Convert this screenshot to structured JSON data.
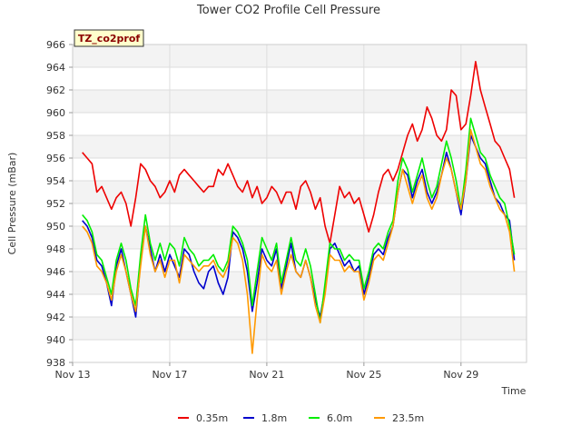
{
  "chart_data": {
    "type": "line",
    "title": "Tower CO2 Profile Cell Pressure",
    "xlabel": "Time",
    "ylabel": "Cell Pressure (mBar)",
    "badge": "TZ_co2prof",
    "ylim": [
      938,
      966
    ],
    "xlim": [
      0,
      18.7
    ],
    "x_ticks": [
      {
        "x": 0,
        "label": "Nov 13"
      },
      {
        "x": 4,
        "label": "Nov 17"
      },
      {
        "x": 8,
        "label": "Nov 21"
      },
      {
        "x": 12,
        "label": "Nov 25"
      },
      {
        "x": 16,
        "label": "Nov 29"
      }
    ],
    "y_ticks": [
      938,
      940,
      942,
      944,
      946,
      948,
      950,
      952,
      954,
      956,
      958,
      960,
      962,
      964,
      966
    ],
    "grid": true,
    "legend_position": "bottom",
    "series": [
      {
        "name": "0.35m",
        "color": "#ee0000",
        "x": [
          0.4,
          0.6,
          0.8,
          1.0,
          1.2,
          1.4,
          1.6,
          1.8,
          2.0,
          2.2,
          2.4,
          2.6,
          2.8,
          3.0,
          3.2,
          3.4,
          3.6,
          3.8,
          4.0,
          4.2,
          4.4,
          4.6,
          4.8,
          5.0,
          5.2,
          5.4,
          5.6,
          5.8,
          6.0,
          6.2,
          6.4,
          6.6,
          6.8,
          7.0,
          7.2,
          7.4,
          7.6,
          7.8,
          8.0,
          8.2,
          8.4,
          8.6,
          8.8,
          9.0,
          9.2,
          9.4,
          9.6,
          9.8,
          10.0,
          10.2,
          10.4,
          10.6,
          10.8,
          11.0,
          11.2,
          11.4,
          11.6,
          11.8,
          12.0,
          12.2,
          12.4,
          12.6,
          12.8,
          13.0,
          13.2,
          13.4,
          13.6,
          13.8,
          14.0,
          14.2,
          14.4,
          14.6,
          14.8,
          15.0,
          15.2,
          15.4,
          15.6,
          15.8,
          16.0,
          16.2,
          16.4,
          16.6,
          16.8,
          17.0,
          17.2,
          17.4,
          17.6,
          17.8,
          18.0,
          18.2
        ],
        "y": [
          956.5,
          956.0,
          955.5,
          953.0,
          953.5,
          952.5,
          951.5,
          952.5,
          953.0,
          952.0,
          950.0,
          952.5,
          955.5,
          955.0,
          954.0,
          953.5,
          952.5,
          953.0,
          954.0,
          953.0,
          954.5,
          955.0,
          954.5,
          954.0,
          953.5,
          953.0,
          953.5,
          953.5,
          955.0,
          954.5,
          955.5,
          954.5,
          953.5,
          953.0,
          954.0,
          952.5,
          953.5,
          952.0,
          952.5,
          953.5,
          953.0,
          952.0,
          953.0,
          953.0,
          951.5,
          953.5,
          954.0,
          953.0,
          951.5,
          952.5,
          950.0,
          948.5,
          951.0,
          953.5,
          952.5,
          953.0,
          952.0,
          952.5,
          951.0,
          949.5,
          951.0,
          953.0,
          954.5,
          955.0,
          954.0,
          955.0,
          956.5,
          958.0,
          959.0,
          957.5,
          958.5,
          960.5,
          959.5,
          958.0,
          957.5,
          958.5,
          962.0,
          961.5,
          958.5,
          959.0,
          961.5,
          964.5,
          962.0,
          960.5,
          959.0,
          957.5,
          957.0,
          956.0,
          955.0,
          952.5
        ]
      },
      {
        "name": "1.8m",
        "color": "#0000cc",
        "x": [
          0.4,
          0.6,
          0.8,
          1.0,
          1.2,
          1.4,
          1.6,
          1.8,
          2.0,
          2.2,
          2.4,
          2.6,
          2.8,
          3.0,
          3.2,
          3.4,
          3.6,
          3.8,
          4.0,
          4.2,
          4.4,
          4.6,
          4.8,
          5.0,
          5.2,
          5.4,
          5.6,
          5.8,
          6.0,
          6.2,
          6.4,
          6.6,
          6.8,
          7.0,
          7.2,
          7.4,
          7.6,
          7.8,
          8.0,
          8.2,
          8.4,
          8.6,
          8.8,
          9.0,
          9.2,
          9.4,
          9.6,
          9.8,
          10.0,
          10.2,
          10.4,
          10.6,
          10.8,
          11.0,
          11.2,
          11.4,
          11.6,
          11.8,
          12.0,
          12.2,
          12.4,
          12.6,
          12.8,
          13.0,
          13.2,
          13.4,
          13.6,
          13.8,
          14.0,
          14.2,
          14.4,
          14.6,
          14.8,
          15.0,
          15.2,
          15.4,
          15.6,
          15.8,
          16.0,
          16.2,
          16.4,
          16.6,
          16.8,
          17.0,
          17.2,
          17.4,
          17.6,
          17.8,
          18.0,
          18.2
        ],
        "y": [
          950.5,
          950.0,
          949.0,
          947.0,
          946.5,
          945.0,
          943.0,
          946.5,
          948.0,
          946.0,
          944.0,
          942.0,
          947.0,
          950.0,
          948.0,
          946.0,
          947.5,
          946.0,
          947.5,
          946.5,
          945.5,
          948.0,
          947.5,
          946.0,
          945.0,
          944.5,
          946.0,
          946.5,
          945.0,
          944.0,
          945.5,
          949.5,
          949.0,
          948.0,
          946.0,
          942.5,
          945.0,
          948.0,
          947.0,
          946.5,
          948.0,
          944.5,
          946.5,
          948.5,
          946.0,
          945.5,
          947.0,
          945.5,
          943.5,
          942.0,
          944.5,
          948.0,
          948.5,
          947.5,
          946.5,
          947.0,
          946.0,
          946.5,
          944.0,
          945.5,
          947.5,
          948.0,
          947.5,
          949.0,
          950.0,
          953.0,
          955.0,
          954.5,
          952.5,
          954.0,
          955.0,
          953.0,
          952.0,
          953.0,
          954.5,
          956.5,
          955.0,
          953.0,
          951.0,
          954.0,
          958.0,
          957.0,
          956.0,
          955.5,
          954.0,
          952.5,
          952.0,
          951.0,
          950.5,
          947.0
        ]
      },
      {
        "name": "6.0m",
        "color": "#00ee00",
        "x": [
          0.4,
          0.6,
          0.8,
          1.0,
          1.2,
          1.4,
          1.6,
          1.8,
          2.0,
          2.2,
          2.4,
          2.6,
          2.8,
          3.0,
          3.2,
          3.4,
          3.6,
          3.8,
          4.0,
          4.2,
          4.4,
          4.6,
          4.8,
          5.0,
          5.2,
          5.4,
          5.6,
          5.8,
          6.0,
          6.2,
          6.4,
          6.6,
          6.8,
          7.0,
          7.2,
          7.4,
          7.6,
          7.8,
          8.0,
          8.2,
          8.4,
          8.6,
          8.8,
          9.0,
          9.2,
          9.4,
          9.6,
          9.8,
          10.0,
          10.2,
          10.4,
          10.6,
          10.8,
          11.0,
          11.2,
          11.4,
          11.6,
          11.8,
          12.0,
          12.2,
          12.4,
          12.6,
          12.8,
          13.0,
          13.2,
          13.4,
          13.6,
          13.8,
          14.0,
          14.2,
          14.4,
          14.6,
          14.8,
          15.0,
          15.2,
          15.4,
          15.6,
          15.8,
          16.0,
          16.2,
          16.4,
          16.6,
          16.8,
          17.0,
          17.2,
          17.4,
          17.6,
          17.8,
          18.0,
          18.2
        ],
        "y": [
          951.0,
          950.5,
          949.5,
          947.5,
          947.0,
          945.5,
          944.0,
          947.0,
          948.5,
          947.0,
          944.5,
          943.0,
          947.5,
          951.0,
          948.5,
          947.0,
          948.5,
          947.0,
          948.5,
          948.0,
          946.5,
          949.0,
          948.0,
          947.5,
          946.5,
          947.0,
          947.0,
          947.5,
          946.5,
          946.0,
          947.0,
          950.0,
          949.5,
          948.5,
          947.0,
          943.0,
          946.0,
          949.0,
          948.0,
          947.0,
          948.5,
          945.0,
          947.0,
          949.0,
          947.0,
          946.5,
          948.0,
          946.5,
          944.0,
          941.5,
          945.0,
          948.5,
          948.0,
          948.0,
          947.0,
          947.5,
          947.0,
          947.0,
          944.5,
          946.0,
          948.0,
          948.5,
          948.0,
          949.5,
          950.5,
          954.0,
          956.0,
          955.0,
          953.0,
          954.5,
          956.0,
          954.0,
          952.5,
          953.5,
          955.5,
          957.5,
          956.0,
          954.0,
          951.5,
          955.0,
          959.5,
          958.0,
          956.5,
          956.0,
          954.5,
          953.5,
          952.5,
          952.0,
          950.0,
          947.5
        ]
      },
      {
        "name": "23.5m",
        "color": "#ff9900",
        "x": [
          0.4,
          0.6,
          0.8,
          1.0,
          1.2,
          1.4,
          1.6,
          1.8,
          2.0,
          2.2,
          2.4,
          2.6,
          2.8,
          3.0,
          3.2,
          3.4,
          3.6,
          3.8,
          4.0,
          4.2,
          4.4,
          4.6,
          4.8,
          5.0,
          5.2,
          5.4,
          5.6,
          5.8,
          6.0,
          6.2,
          6.4,
          6.6,
          6.8,
          7.0,
          7.2,
          7.4,
          7.6,
          7.8,
          8.0,
          8.2,
          8.4,
          8.6,
          8.8,
          9.0,
          9.2,
          9.4,
          9.6,
          9.8,
          10.0,
          10.2,
          10.4,
          10.6,
          10.8,
          11.0,
          11.2,
          11.4,
          11.6,
          11.8,
          12.0,
          12.2,
          12.4,
          12.6,
          12.8,
          13.0,
          13.2,
          13.4,
          13.6,
          13.8,
          14.0,
          14.2,
          14.4,
          14.6,
          14.8,
          15.0,
          15.2,
          15.4,
          15.6,
          15.8,
          16.0,
          16.2,
          16.4,
          16.6,
          16.8,
          17.0,
          17.2,
          17.4,
          17.6,
          17.8,
          18.0,
          18.2
        ],
        "y": [
          950.0,
          949.5,
          948.5,
          946.5,
          946.0,
          945.0,
          943.5,
          946.0,
          947.5,
          946.0,
          944.0,
          942.5,
          946.5,
          950.0,
          947.5,
          946.0,
          947.0,
          945.5,
          947.0,
          947.0,
          945.0,
          947.5,
          947.0,
          946.5,
          946.0,
          946.5,
          946.5,
          947.0,
          946.0,
          945.5,
          946.5,
          949.0,
          948.5,
          947.0,
          944.0,
          938.8,
          943.5,
          947.5,
          946.5,
          946.0,
          947.0,
          944.0,
          946.0,
          947.5,
          946.0,
          945.5,
          947.0,
          945.5,
          943.0,
          941.5,
          944.0,
          947.5,
          947.0,
          947.0,
          946.0,
          946.5,
          946.0,
          946.0,
          943.5,
          945.0,
          947.0,
          947.5,
          947.0,
          948.5,
          950.0,
          953.0,
          955.0,
          953.5,
          952.0,
          953.5,
          954.5,
          952.5,
          951.5,
          952.5,
          954.5,
          956.0,
          955.0,
          953.0,
          951.5,
          954.0,
          958.5,
          957.0,
          955.5,
          955.0,
          953.5,
          952.5,
          951.5,
          951.0,
          949.5,
          946.0
        ]
      }
    ]
  }
}
